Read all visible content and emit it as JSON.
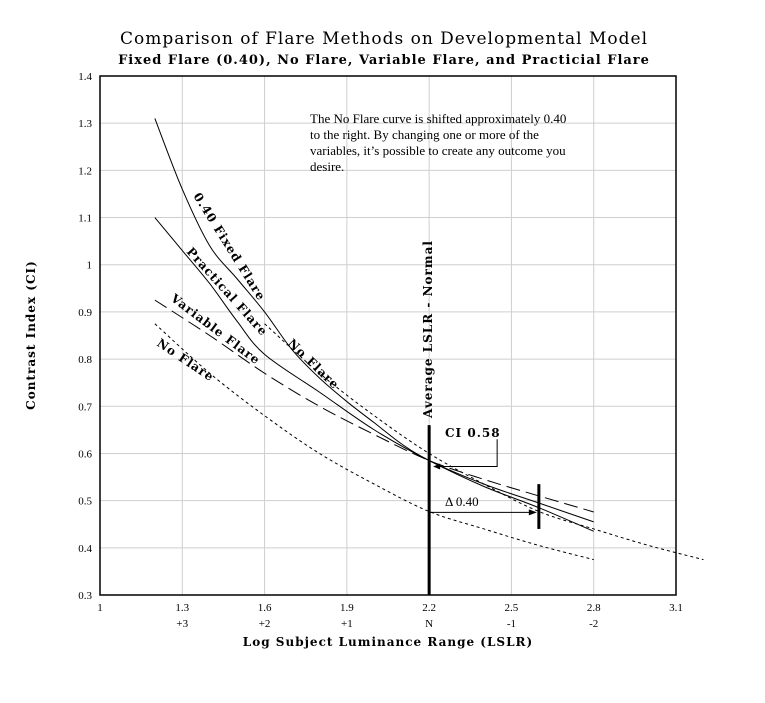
{
  "chart_data": {
    "type": "line",
    "title": "Comparison of Flare Methods on Developmental Model",
    "subtitle": "Fixed Flare (0.40), No Flare, Variable Flare, and Practicial Flare",
    "xlabel": "Log Subject Luminance Range (LSLR)",
    "ylabel": "Contrast Index (CI)",
    "xlim": [
      1,
      3.1
    ],
    "ylim": [
      0.3,
      1.4
    ],
    "grid": true,
    "xticks": [
      1,
      1.3,
      1.6,
      1.9,
      2.2,
      2.5,
      2.8,
      3.1
    ],
    "xtick_labels": [
      "1",
      "1.3",
      "1.6",
      "1.9",
      "2.2",
      "2.5",
      "2.8",
      "3.1"
    ],
    "xtick_sublabels": [
      "",
      "+3",
      "+2",
      "+1",
      "N",
      "-1",
      "-2",
      ""
    ],
    "yticks": [
      0.3,
      0.4,
      0.5,
      0.6,
      0.7,
      0.8,
      0.9,
      1.0,
      1.1,
      1.2,
      1.3,
      1.4
    ],
    "ytick_labels": [
      "0.3",
      "0.4",
      "0.5",
      "0.6",
      "0.7",
      "0.8",
      "0.9",
      "1",
      "1.1",
      "1.2",
      "1.3",
      "1.4"
    ],
    "series": [
      {
        "name": "0.40 Fixed Flare",
        "style": "solid",
        "x": [
          1.2,
          1.3,
          1.4,
          1.5,
          1.6,
          1.7,
          1.8,
          1.9,
          2.0,
          2.1,
          2.2,
          2.4,
          2.6,
          2.8
        ],
        "y": [
          1.31,
          1.16,
          1.04,
          0.97,
          0.9,
          0.82,
          0.76,
          0.71,
          0.665,
          0.62,
          0.585,
          0.53,
          0.485,
          0.435
        ]
      },
      {
        "name": "Practical Flare",
        "style": "solid",
        "x": [
          1.2,
          1.3,
          1.4,
          1.5,
          1.6,
          1.8,
          2.0,
          2.2,
          2.4,
          2.6,
          2.8
        ],
        "y": [
          1.1,
          1.03,
          0.96,
          0.88,
          0.81,
          0.73,
          0.65,
          0.585,
          0.535,
          0.495,
          0.455
        ]
      },
      {
        "name": "Variable Flare",
        "style": "longdash",
        "x": [
          1.2,
          1.4,
          1.6,
          1.8,
          2.0,
          2.2,
          2.4,
          2.6,
          2.8
        ],
        "y": [
          0.925,
          0.85,
          0.77,
          0.7,
          0.64,
          0.585,
          0.545,
          0.51,
          0.476
        ]
      },
      {
        "name": "No Flare",
        "style": "shortdash",
        "x": [
          1.2,
          1.4,
          1.6,
          1.8,
          2.0,
          2.2,
          2.4,
          2.6,
          2.8
        ],
        "y": [
          0.875,
          0.77,
          0.68,
          0.6,
          0.535,
          0.477,
          0.44,
          0.405,
          0.375
        ]
      },
      {
        "name": "No Flare",
        "style": "shortdash",
        "x": [
          1.6,
          1.8,
          2.0,
          2.2,
          2.4,
          2.6,
          2.8,
          3.0,
          3.2
        ],
        "y": [
          0.875,
          0.77,
          0.68,
          0.6,
          0.535,
          0.477,
          0.44,
          0.405,
          0.375
        ]
      }
    ],
    "annotations": {
      "note": [
        "The No Flare curve is shifted approximately 0.40",
        "to the right.  By changing one or more of the",
        "variables, it’s possible to create any outcome you",
        "desire."
      ],
      "average_line_label": "Average LSLR - Normal",
      "average_line_x": 2.2,
      "average_line_top": 0.66,
      "ci_label": "CI 0.58",
      "ci_value": 0.585,
      "delta_label": "Δ 0.40",
      "delta_from": 2.2,
      "delta_to": 2.6,
      "delta_y": 0.475,
      "marker_x": 2.6,
      "marker_range": [
        0.44,
        0.535
      ]
    }
  }
}
